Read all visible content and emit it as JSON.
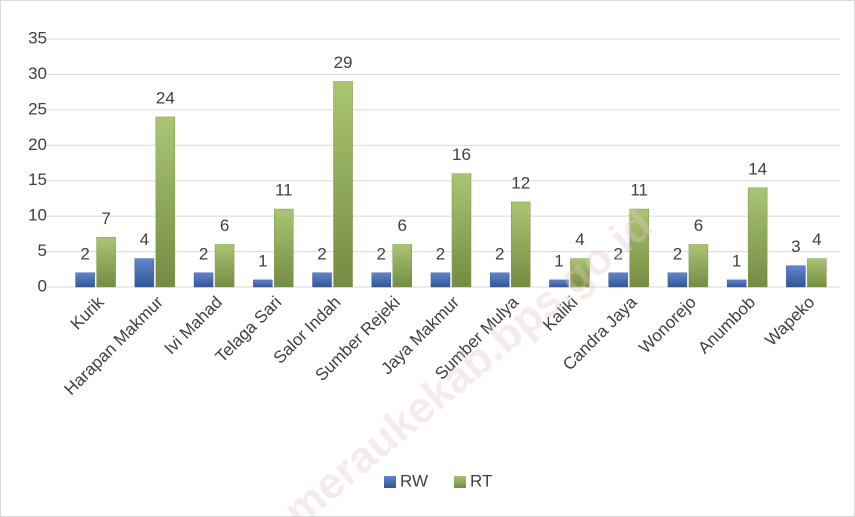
{
  "chart_data": {
    "type": "bar",
    "categories": [
      "Kurik",
      "Harapan Makmur",
      "Ivi Mahad",
      "Telaga Sari",
      "Salor Indah",
      "Sumber Rejeki",
      "Jaya Makmur",
      "Sumber Mulya",
      "Kaliki",
      "Candra Jaya",
      "Wonorejo",
      "Anumbob",
      "Wapeko"
    ],
    "series": [
      {
        "name": "RW",
        "color": "#4472c4",
        "values": [
          2,
          4,
          2,
          1,
          2,
          2,
          2,
          2,
          1,
          2,
          2,
          1,
          3
        ]
      },
      {
        "name": "RT",
        "color": "#9bbb59",
        "values": [
          7,
          24,
          6,
          11,
          29,
          6,
          16,
          12,
          4,
          11,
          6,
          14,
          4
        ]
      }
    ],
    "ylim": [
      0,
      35
    ],
    "yticks": [
      0,
      5,
      10,
      15,
      20,
      25,
      30,
      35
    ],
    "grid": true,
    "legend": "bottom",
    "watermark": "meraukekab.bps.go.id"
  }
}
